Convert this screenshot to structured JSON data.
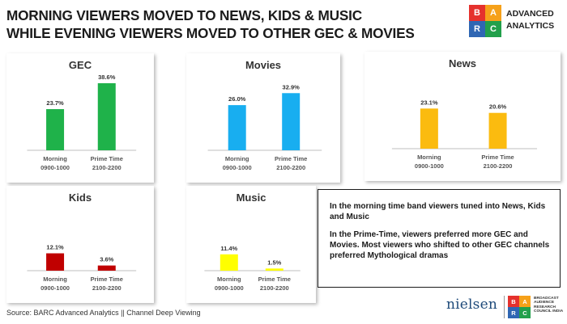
{
  "header": {
    "title_line1": "MORNING VIEWERS MOVED TO NEWS, KIDS & MUSIC",
    "title_line2": "WHILE EVENING VIEWERS MOVED TO OTHER GEC & MOVIES"
  },
  "brand": {
    "letters": [
      "B",
      "A",
      "R",
      "C"
    ],
    "colors": [
      "#e5312d",
      "#f6a11a",
      "#2f66b3",
      "#22a04b"
    ],
    "name_line1": "ADVANCED",
    "name_line2": "ANALYTICS"
  },
  "chart_data": [
    {
      "type": "bar",
      "title": "GEC",
      "categories": [
        [
          "Morning",
          "0900-1000"
        ],
        [
          "Prime Time",
          "2100-2200"
        ]
      ],
      "values": [
        23.7,
        38.6
      ],
      "labels": [
        "23.7%",
        "38.6%"
      ],
      "color": "#1fb24a",
      "ylim": [
        0,
        40
      ],
      "grid": false
    },
    {
      "type": "bar",
      "title": "Movies",
      "categories": [
        [
          "Morning",
          "0900-1000"
        ],
        [
          "Prime Time",
          "2100-2200"
        ]
      ],
      "values": [
        26.0,
        32.9
      ],
      "labels": [
        "26.0%",
        "32.9%"
      ],
      "color": "#18aef0",
      "ylim": [
        0,
        40
      ],
      "grid": false
    },
    {
      "type": "bar",
      "title": "News",
      "categories": [
        [
          "Morning",
          "0900-1000"
        ],
        [
          "Prime Time",
          "2100-2200"
        ]
      ],
      "values": [
        23.1,
        20.6
      ],
      "labels": [
        "23.1%",
        "20.6%"
      ],
      "color": "#fbbb0f",
      "ylim": [
        0,
        40
      ],
      "grid": false
    },
    {
      "type": "bar",
      "title": "Kids",
      "categories": [
        [
          "Morning",
          "0900-1000"
        ],
        [
          "Prime Time",
          "2100-2200"
        ]
      ],
      "values": [
        12.1,
        3.6
      ],
      "labels": [
        "12.1%",
        "3.6%"
      ],
      "color": "#c00000",
      "ylim": [
        0,
        40
      ],
      "grid": false
    },
    {
      "type": "bar",
      "title": "Music",
      "categories": [
        [
          "Morning",
          "0900-1000"
        ],
        [
          "Prime Time",
          "2100-2200"
        ]
      ],
      "values": [
        11.4,
        1.5
      ],
      "labels": [
        "11.4%",
        "1.5%"
      ],
      "color": "#ffff00",
      "ylim": [
        0,
        40
      ],
      "grid": false
    }
  ],
  "note": {
    "paragraph1": "In the morning time band viewers tuned into News, Kids and Music",
    "paragraph2": "In the Prime-Time, viewers preferred more GEC and  Movies. Most viewers who shifted to other GEC channels preferred Mythological dramas"
  },
  "footer": {
    "source": "Source: BARC Advanced Analytics || Channel Deep Viewing",
    "nielsen": "nielsen",
    "barc_text": "BROADCAST AUDIENCE RESEARCH COUNCIL INDIA"
  }
}
